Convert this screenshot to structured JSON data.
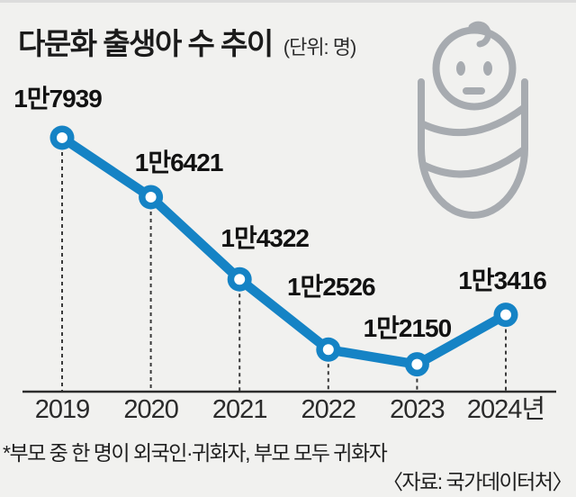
{
  "header": {
    "title": "다문화 출생아 수 추이",
    "unit": "(단위: 명)"
  },
  "chart_data": {
    "type": "line",
    "title": "다문화 출생아 수 추이",
    "unit_label": "(단위: 명)",
    "categories": [
      "2019",
      "2020",
      "2021",
      "2022",
      "2023",
      "2024년"
    ],
    "values": [
      17939,
      16421,
      14322,
      12526,
      12150,
      13416
    ],
    "point_labels": [
      "1만7939",
      "1만6421",
      "1만4322",
      "1만2526",
      "1만2150",
      "1만3416"
    ],
    "series_name": "다문화 출생아 수",
    "line_color": "#1583c5",
    "marker_style": "open-circle",
    "guide_lines": "dashed-vertical-to-axis",
    "grid": false,
    "legend": false,
    "ylim": [
      11500,
      18500
    ]
  },
  "footnote": "*부모 중 한 명이 외국인·귀화자, 부모 모두 귀화자",
  "source": "〈자료: 국가데이터처〉",
  "icons": {
    "baby": "swaddled-baby-icon"
  },
  "colors": {
    "accent_blue": "#1583c5",
    "icon_gray": "#a7abb0",
    "background": "#f1f1ef",
    "axis": "#2c2c2c"
  }
}
